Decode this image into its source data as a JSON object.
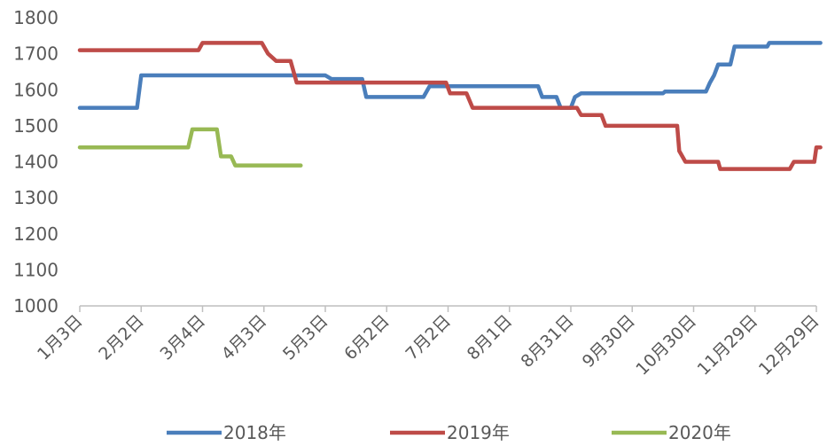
{
  "chart_data": {
    "type": "line",
    "title": "",
    "xlabel": "",
    "ylabel": "",
    "ylim": [
      1000,
      1800
    ],
    "yticks": [
      1000,
      1100,
      1200,
      1300,
      1400,
      1500,
      1600,
      1700,
      1800
    ],
    "x_tick_labels": [
      "1月3日",
      "2月2日",
      "3月4日",
      "4月3日",
      "5月3日",
      "6月2日",
      "7月2日",
      "8月1日",
      "8月31日",
      "9月30日",
      "10月30日",
      "11月29日",
      "12月29日"
    ],
    "x_day_of_year": [
      3,
      33,
      63,
      93,
      123,
      153,
      183,
      213,
      243,
      273,
      303,
      333,
      363
    ],
    "xlim_day_of_year": [
      3,
      363
    ],
    "grid": false,
    "legend_position": "bottom",
    "series": [
      {
        "name": "2018年",
        "color": "#4A7EBB",
        "points": [
          [
            "1月3日",
            1550
          ],
          [
            "1月31日",
            1550
          ],
          [
            "2月2日",
            1640
          ],
          [
            "5月3日",
            1640
          ],
          [
            "5月6日",
            1630
          ],
          [
            "5月21日",
            1630
          ],
          [
            "5月23日",
            1580
          ],
          [
            "6月20日",
            1580
          ],
          [
            "6月23日",
            1610
          ],
          [
            "8月15日",
            1610
          ],
          [
            "8月17日",
            1580
          ],
          [
            "8月24日",
            1580
          ],
          [
            "8月26日",
            1550
          ],
          [
            "8月31日",
            1550
          ],
          [
            "9月2日",
            1580
          ],
          [
            "9月5日",
            1590
          ],
          [
            "10月15日",
            1590
          ],
          [
            "10月16日",
            1595
          ],
          [
            "11月5日",
            1595
          ],
          [
            "11月7日",
            1620
          ],
          [
            "11月9日",
            1640
          ],
          [
            "11月11日",
            1670
          ],
          [
            "11月17日",
            1670
          ],
          [
            "11月19日",
            1720
          ],
          [
            "12月5日",
            1720
          ],
          [
            "12月6日",
            1730
          ],
          [
            "12月31日",
            1730
          ]
        ]
      },
      {
        "name": "2019年",
        "color": "#BE4B48",
        "points": [
          [
            "1月3日",
            1710
          ],
          [
            "3月2日",
            1710
          ],
          [
            "3月4日",
            1730
          ],
          [
            "4月2日",
            1730
          ],
          [
            "4月5日",
            1700
          ],
          [
            "4月9日",
            1680
          ],
          [
            "4月16日",
            1680
          ],
          [
            "4月19日",
            1620
          ],
          [
            "7月1日",
            1620
          ],
          [
            "7月3日",
            1590
          ],
          [
            "7月11日",
            1590
          ],
          [
            "7月14日",
            1550
          ],
          [
            "9月3日",
            1550
          ],
          [
            "9月5日",
            1530
          ],
          [
            "9月15日",
            1530
          ],
          [
            "9月17日",
            1500
          ],
          [
            "10月22日",
            1500
          ],
          [
            "10月23日",
            1430
          ],
          [
            "10月26日",
            1400
          ],
          [
            "11月3日",
            1400
          ],
          [
            "11月11日",
            1400
          ],
          [
            "11月12日",
            1380
          ],
          [
            "12月16日",
            1380
          ],
          [
            "12月18日",
            1400
          ],
          [
            "12月28日",
            1400
          ],
          [
            "12月29日",
            1440
          ],
          [
            "12月31日",
            1440
          ]
        ]
      },
      {
        "name": "2020年",
        "color": "#98B954",
        "points": [
          [
            "1月3日",
            1440
          ],
          [
            "2月25日",
            1440
          ],
          [
            "2月27日",
            1490
          ],
          [
            "3月11日",
            1490
          ],
          [
            "3月13日",
            1415
          ],
          [
            "3月18日",
            1415
          ],
          [
            "3月20日",
            1390
          ],
          [
            "4月21日",
            1390
          ]
        ]
      }
    ]
  }
}
